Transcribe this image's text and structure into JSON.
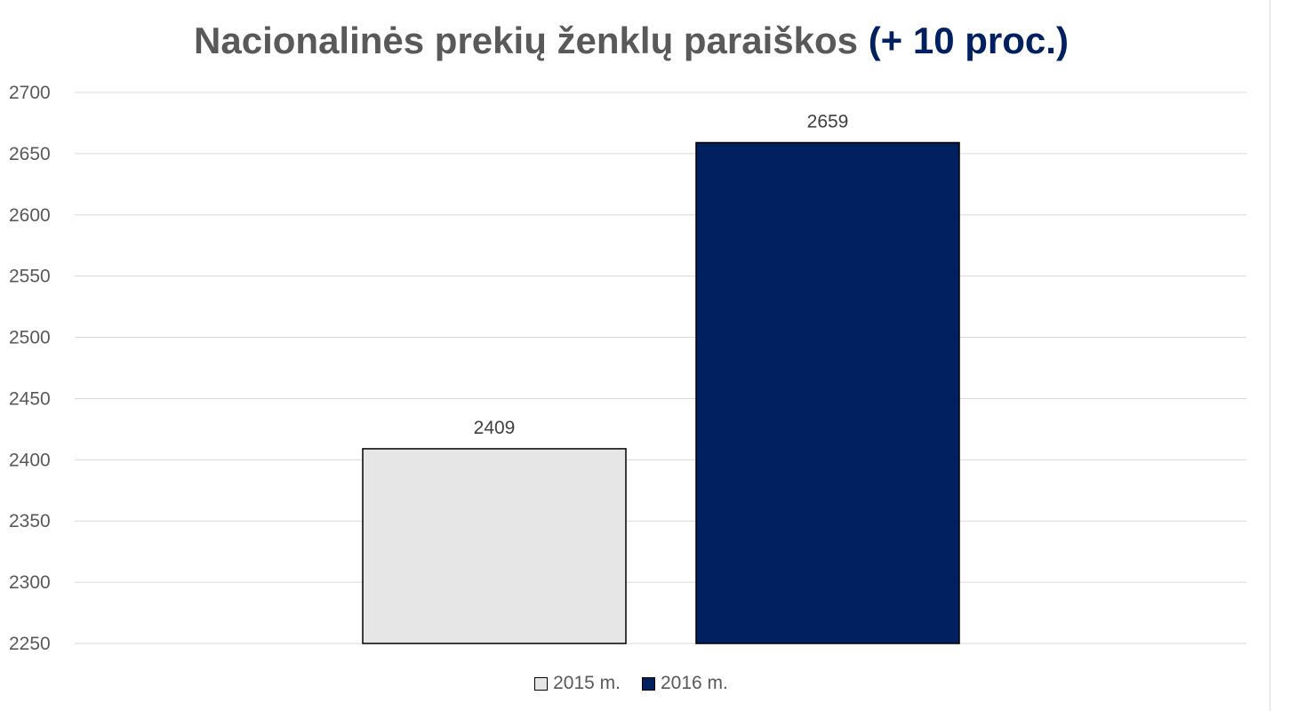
{
  "title": {
    "main": "Nacionalinės prekių ženklų paraiškos",
    "accent": "(+ 10 proc.)"
  },
  "colors": {
    "accent": "#002060",
    "bar_2015": "#e7e6e6",
    "bar_2016": "#002060",
    "gridline": "#d9d9d9",
    "text": "#595959"
  },
  "chart_data": {
    "type": "bar",
    "categories": [
      ""
    ],
    "series": [
      {
        "name": "2015 m.",
        "values": [
          2409
        ],
        "color": "#e7e6e6"
      },
      {
        "name": "2016 m.",
        "values": [
          2659
        ],
        "color": "#002060"
      }
    ],
    "title": "Nacionalinės prekių ženklų paraiškos (+ 10 proc.)",
    "xlabel": "",
    "ylabel": "",
    "ylim": [
      2250,
      2700
    ],
    "yticks": [
      2250,
      2300,
      2350,
      2400,
      2450,
      2500,
      2550,
      2600,
      2650,
      2700
    ],
    "data_labels": true,
    "grid": true,
    "legend": "bottom"
  }
}
